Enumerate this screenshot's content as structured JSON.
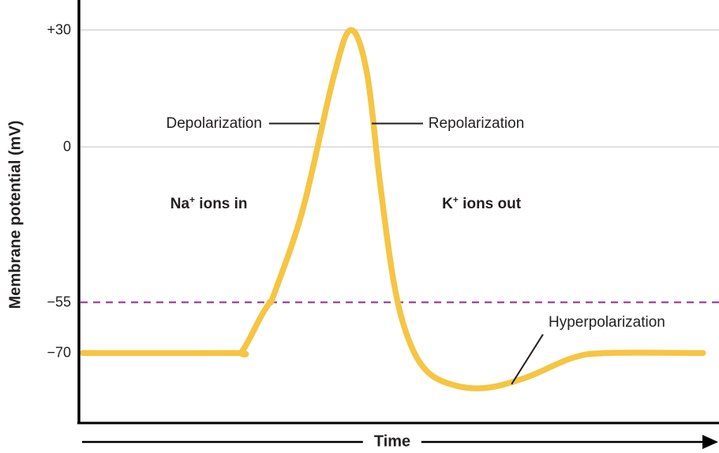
{
  "chart_data": {
    "type": "line",
    "title": "",
    "xlabel": "Time",
    "ylabel": "Membrane potential (mV)",
    "ylim": [
      -90,
      40
    ],
    "grid": "horizontal-partial",
    "y_ticks": [
      {
        "value": 30,
        "label": "+30"
      },
      {
        "value": 0,
        "label": "0"
      },
      {
        "value": -55,
        "label": "−55"
      },
      {
        "value": -70,
        "label": "−70"
      }
    ],
    "gridline_values": [
      30,
      0
    ],
    "threshold": {
      "value": -55,
      "style": "dashed",
      "color": "#9B4D9B"
    },
    "y_scale_anchors": [
      [
        40,
        0.0
      ],
      [
        30,
        0.071
      ],
      [
        0,
        0.348
      ],
      [
        -55,
        0.716
      ],
      [
        -70,
        0.836
      ],
      [
        -90,
        1.0
      ]
    ],
    "colors": {
      "curve": "#F5C543",
      "gridline": "#D9D9D9",
      "text": "#231F20",
      "axis": "#000000"
    },
    "curve": {
      "name": "membrane potential",
      "color": "#F5C543",
      "points": [
        [
          0.006,
          -70
        ],
        [
          0.24,
          -70
        ],
        [
          0.255,
          -69.5
        ],
        [
          0.285,
          -59
        ],
        [
          0.298,
          -55
        ],
        [
          0.305,
          -52
        ],
        [
          0.35,
          -22
        ],
        [
          0.398,
          18
        ],
        [
          0.425,
          30
        ],
        [
          0.45,
          19
        ],
        [
          0.47,
          -12
        ],
        [
          0.492,
          -48
        ],
        [
          0.515,
          -66
        ],
        [
          0.545,
          -75.5
        ],
        [
          0.59,
          -79.5
        ],
        [
          0.64,
          -80
        ],
        [
          0.7,
          -77
        ],
        [
          0.77,
          -71.5
        ],
        [
          0.825,
          -70
        ],
        [
          0.975,
          -70
        ]
      ]
    },
    "annotations": [
      {
        "id": "depolarization",
        "text": "Depolarization",
        "align": "right",
        "label_at": {
          "t": 0.286,
          "mV": 6
        },
        "line": {
          "from": {
            "t": 0.297,
            "mV": 6
          },
          "to": {
            "t": 0.376,
            "mV": 6
          }
        }
      },
      {
        "id": "repolarization",
        "text": "Repolarization",
        "align": "left",
        "label_at": {
          "t": 0.546,
          "mV": 6
        },
        "line": {
          "from": {
            "t": 0.4575,
            "mV": 6
          },
          "to": {
            "t": 0.5376,
            "mV": 6
          }
        }
      },
      {
        "id": "hyperpolarization",
        "text": "Hyperpolarization",
        "align": "left",
        "label_at": {
          "t": 0.7337,
          "mV": -61
        },
        "line": {
          "from": {
            "t": 0.725,
            "mV": -64.5
          },
          "to": {
            "t": 0.676,
            "mV": -79
          }
        }
      }
    ],
    "region_labels": [
      {
        "id": "na-ions-in",
        "base": "Na",
        "sup": "+",
        "rest": " ions in",
        "at": {
          "t": 0.203,
          "mV": -20
        }
      },
      {
        "id": "k-ions-out",
        "base": "K",
        "sup": "+",
        "rest": " ions out",
        "at": {
          "t": 0.629,
          "mV": -20
        }
      }
    ],
    "x_axis_arrow": true
  }
}
